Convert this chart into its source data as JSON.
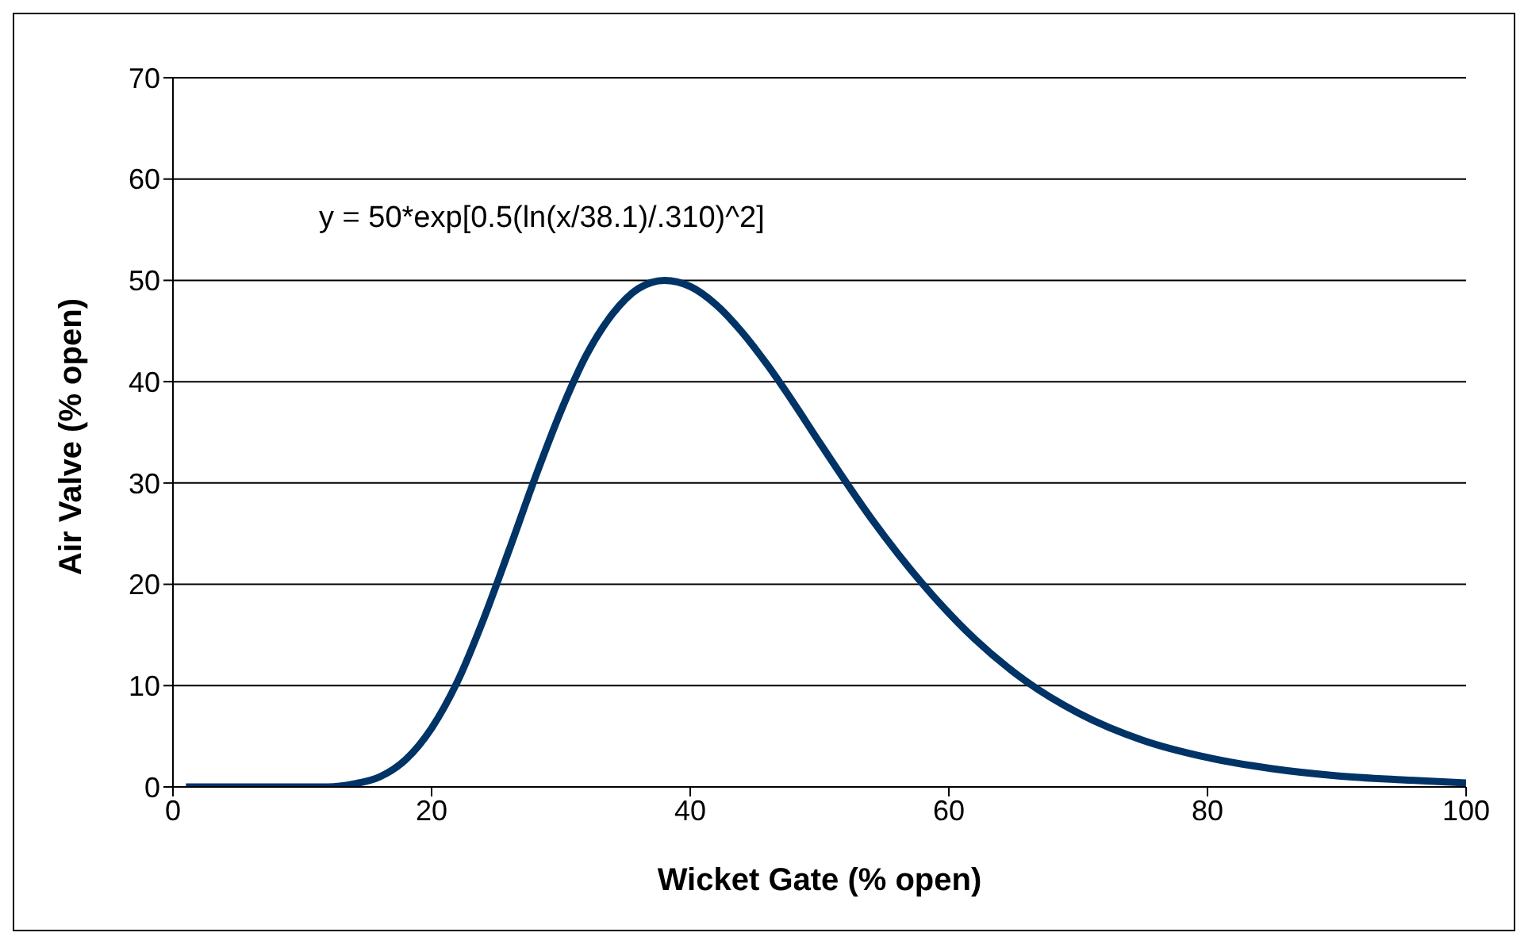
{
  "chart_data": {
    "type": "line",
    "xlabel": "Wicket Gate (% open)",
    "ylabel": "Air Valve (% open)",
    "annotations": [
      "y = 50*exp[0.5(ln(x/38.1)/.310)^2]"
    ],
    "x": [
      1,
      4,
      8,
      12,
      14,
      16,
      18,
      20,
      22,
      24,
      26,
      28,
      30,
      32,
      34,
      36,
      38,
      40,
      42,
      44,
      46,
      48,
      50,
      54,
      58,
      62,
      66,
      70,
      75,
      80,
      85,
      90,
      95,
      100
    ],
    "series": [
      {
        "color": "#003366",
        "values": [
          0,
          0,
          0,
          0,
          0.3,
          1.0,
          2.7,
          5.8,
          10.4,
          16.5,
          23.4,
          30.5,
          37.1,
          42.7,
          46.7,
          49.2,
          50,
          49.4,
          47.6,
          44.9,
          41.6,
          37.9,
          34.0,
          26.5,
          20.0,
          14.6,
          10.4,
          7.3,
          4.6,
          2.9,
          1.8,
          1.1,
          0.7,
          0.4
        ]
      }
    ],
    "xlim": [
      0,
      100
    ],
    "xticks": [
      0,
      20,
      40,
      60,
      80,
      100
    ],
    "ylim": [
      0,
      70
    ],
    "yticks": [
      0,
      10,
      20,
      30,
      40,
      50,
      60,
      70
    ],
    "grid": "y",
    "legend": false,
    "marker": "none",
    "line_style": "solid"
  }
}
